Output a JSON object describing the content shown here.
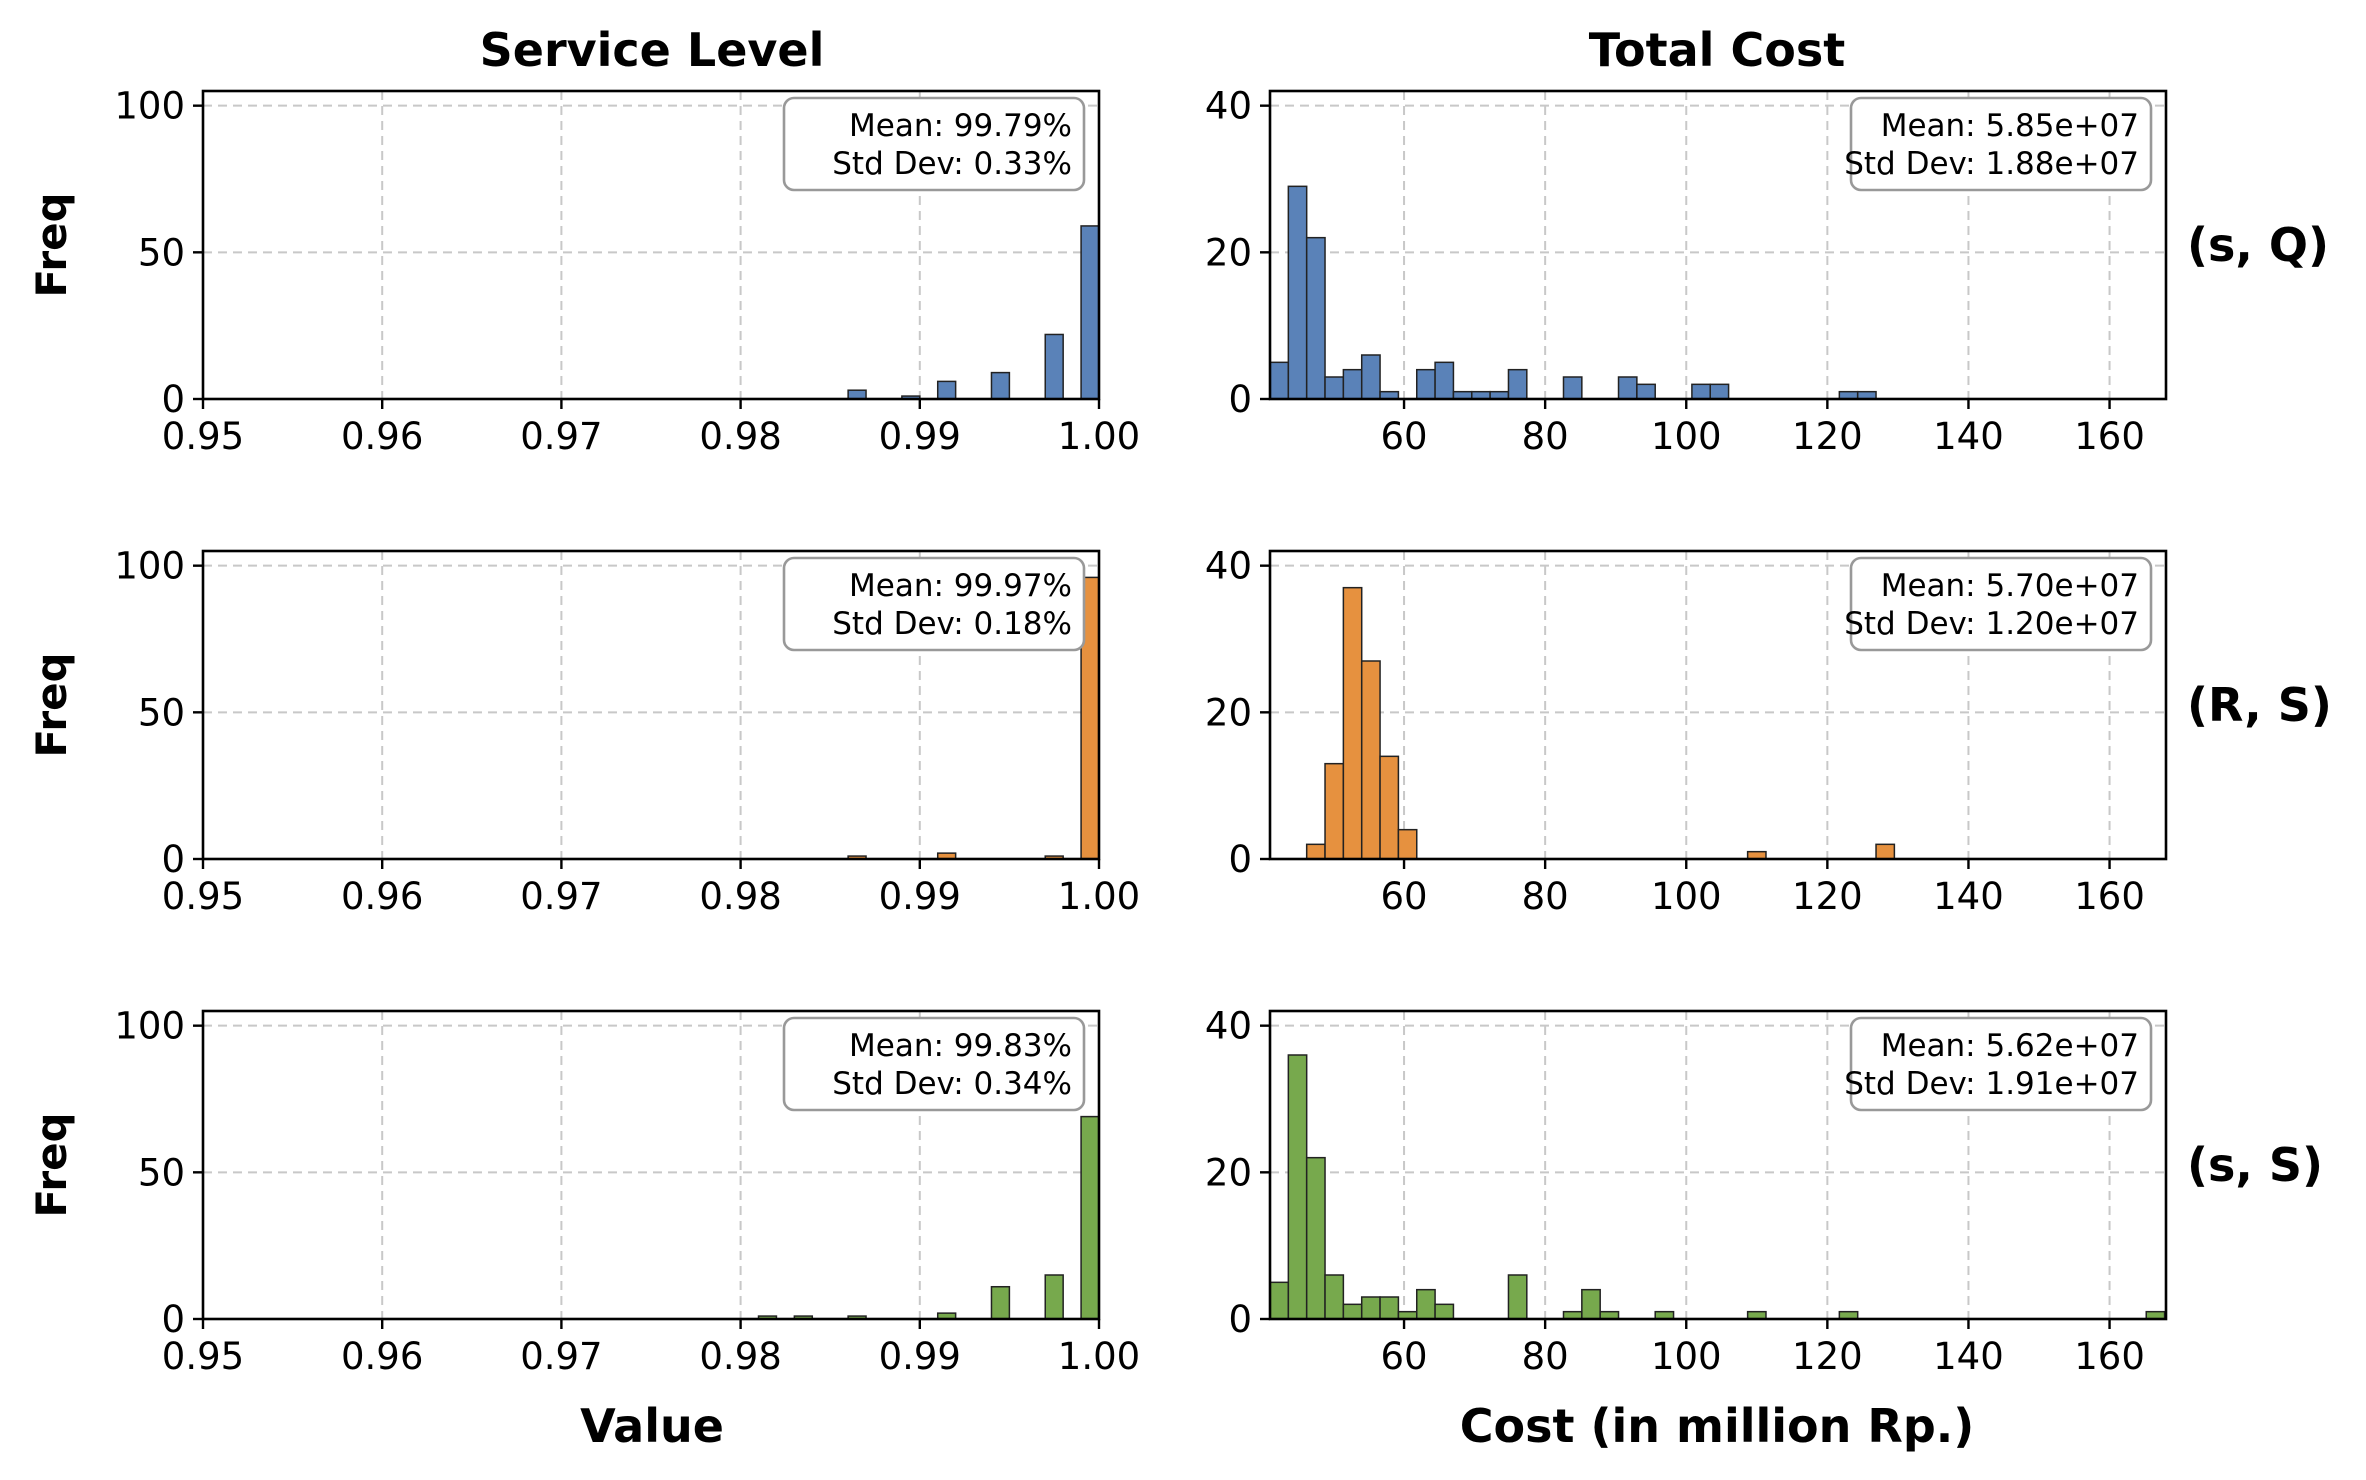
{
  "columns": {
    "service_title": "Service Level",
    "cost_title": "Total Cost"
  },
  "ylabel": "Freq",
  "xlabel_service": "Value",
  "xlabel_cost": "Cost (in million Rp.)",
  "chart_data": [
    {
      "type": "histogram",
      "row_label": "(s, Q)",
      "panel": "service_level",
      "color": "#5a82b8",
      "xlim": [
        0.95,
        1.0
      ],
      "xticks": [
        "0.95",
        "0.96",
        "0.97",
        "0.98",
        "0.99",
        "1.00"
      ],
      "ylim": [
        0,
        105
      ],
      "yticks": [
        0,
        50,
        100
      ],
      "grid": true,
      "stat_mean": "Mean: 99.79%",
      "stat_std": "Std Dev: 0.33%",
      "bin_width": 0.001,
      "bars": [
        {
          "x": 0.9865,
          "y": 3
        },
        {
          "x": 0.9895,
          "y": 1
        },
        {
          "x": 0.9915,
          "y": 6
        },
        {
          "x": 0.9945,
          "y": 9
        },
        {
          "x": 0.9975,
          "y": 22
        },
        {
          "x": 0.9995,
          "y": 59
        }
      ]
    },
    {
      "type": "histogram",
      "row_label": "(s, Q)",
      "panel": "total_cost",
      "color": "#5a82b8",
      "xlim": [
        41,
        168
      ],
      "xticks": [
        "60",
        "80",
        "100",
        "120",
        "140",
        "160"
      ],
      "ylim": [
        0,
        42
      ],
      "yticks": [
        0,
        20,
        40
      ],
      "grid": true,
      "stat_mean": "Mean: 5.85e+07",
      "stat_std": "Std Dev: 1.88e+07",
      "bin_width": 2.6,
      "bars": [
        {
          "x": 42.3,
          "y": 5
        },
        {
          "x": 44.9,
          "y": 29
        },
        {
          "x": 47.5,
          "y": 22
        },
        {
          "x": 50.1,
          "y": 3
        },
        {
          "x": 52.7,
          "y": 4
        },
        {
          "x": 55.3,
          "y": 6
        },
        {
          "x": 57.9,
          "y": 1
        },
        {
          "x": 63.1,
          "y": 4
        },
        {
          "x": 65.7,
          "y": 5
        },
        {
          "x": 68.3,
          "y": 1
        },
        {
          "x": 70.9,
          "y": 1
        },
        {
          "x": 73.5,
          "y": 1
        },
        {
          "x": 76.1,
          "y": 4
        },
        {
          "x": 83.9,
          "y": 3
        },
        {
          "x": 91.7,
          "y": 3
        },
        {
          "x": 94.3,
          "y": 2
        },
        {
          "x": 102.1,
          "y": 2
        },
        {
          "x": 104.7,
          "y": 2
        },
        {
          "x": 123.0,
          "y": 1
        },
        {
          "x": 125.6,
          "y": 1
        }
      ]
    },
    {
      "type": "histogram",
      "row_label": "(R, S)",
      "panel": "service_level",
      "color": "#e6913f",
      "xlim": [
        0.95,
        1.0
      ],
      "xticks": [
        "0.95",
        "0.96",
        "0.97",
        "0.98",
        "0.99",
        "1.00"
      ],
      "ylim": [
        0,
        105
      ],
      "yticks": [
        0,
        50,
        100
      ],
      "grid": true,
      "stat_mean": "Mean: 99.97%",
      "stat_std": "Std Dev: 0.18%",
      "bin_width": 0.001,
      "bars": [
        {
          "x": 0.9865,
          "y": 1
        },
        {
          "x": 0.9915,
          "y": 2
        },
        {
          "x": 0.9975,
          "y": 1
        },
        {
          "x": 0.9995,
          "y": 96
        }
      ]
    },
    {
      "type": "histogram",
      "row_label": "(R, S)",
      "panel": "total_cost",
      "color": "#e6913f",
      "xlim": [
        41,
        168
      ],
      "xticks": [
        "60",
        "80",
        "100",
        "120",
        "140",
        "160"
      ],
      "ylim": [
        0,
        42
      ],
      "yticks": [
        0,
        20,
        40
      ],
      "grid": true,
      "stat_mean": "Mean: 5.70e+07",
      "stat_std": "Std Dev: 1.20e+07",
      "bin_width": 2.6,
      "bars": [
        {
          "x": 47.5,
          "y": 2
        },
        {
          "x": 50.1,
          "y": 13
        },
        {
          "x": 52.7,
          "y": 37
        },
        {
          "x": 55.3,
          "y": 27
        },
        {
          "x": 57.9,
          "y": 14
        },
        {
          "x": 60.5,
          "y": 4
        },
        {
          "x": 110.0,
          "y": 1
        },
        {
          "x": 128.2,
          "y": 2
        }
      ]
    },
    {
      "type": "histogram",
      "row_label": "(s, S)",
      "panel": "service_level",
      "color": "#77a94d",
      "xlim": [
        0.95,
        1.0
      ],
      "xticks": [
        "0.95",
        "0.96",
        "0.97",
        "0.98",
        "0.99",
        "1.00"
      ],
      "ylim": [
        0,
        105
      ],
      "yticks": [
        0,
        50,
        100
      ],
      "grid": true,
      "stat_mean": "Mean: 99.83%",
      "stat_std": "Std Dev: 0.34%",
      "bin_width": 0.001,
      "bars": [
        {
          "x": 0.9815,
          "y": 1
        },
        {
          "x": 0.9835,
          "y": 1
        },
        {
          "x": 0.9865,
          "y": 1
        },
        {
          "x": 0.9915,
          "y": 2
        },
        {
          "x": 0.9945,
          "y": 11
        },
        {
          "x": 0.9975,
          "y": 15
        },
        {
          "x": 0.9995,
          "y": 69
        }
      ]
    },
    {
      "type": "histogram",
      "row_label": "(s, S)",
      "panel": "total_cost",
      "color": "#77a94d",
      "xlim": [
        41,
        168
      ],
      "xticks": [
        "60",
        "80",
        "100",
        "120",
        "140",
        "160"
      ],
      "ylim": [
        0,
        42
      ],
      "yticks": [
        0,
        20,
        40
      ],
      "grid": true,
      "stat_mean": "Mean: 5.62e+07",
      "stat_std": "Std Dev: 1.91e+07",
      "bin_width": 2.6,
      "bars": [
        {
          "x": 42.3,
          "y": 5
        },
        {
          "x": 44.9,
          "y": 36
        },
        {
          "x": 47.5,
          "y": 22
        },
        {
          "x": 50.1,
          "y": 6
        },
        {
          "x": 52.7,
          "y": 2
        },
        {
          "x": 55.3,
          "y": 3
        },
        {
          "x": 57.9,
          "y": 3
        },
        {
          "x": 60.5,
          "y": 1
        },
        {
          "x": 63.1,
          "y": 4
        },
        {
          "x": 65.7,
          "y": 2
        },
        {
          "x": 76.1,
          "y": 6
        },
        {
          "x": 83.9,
          "y": 1
        },
        {
          "x": 86.5,
          "y": 4
        },
        {
          "x": 89.1,
          "y": 1
        },
        {
          "x": 96.9,
          "y": 1
        },
        {
          "x": 110.0,
          "y": 1
        },
        {
          "x": 123.0,
          "y": 1
        },
        {
          "x": 166.5,
          "y": 1
        }
      ]
    }
  ]
}
